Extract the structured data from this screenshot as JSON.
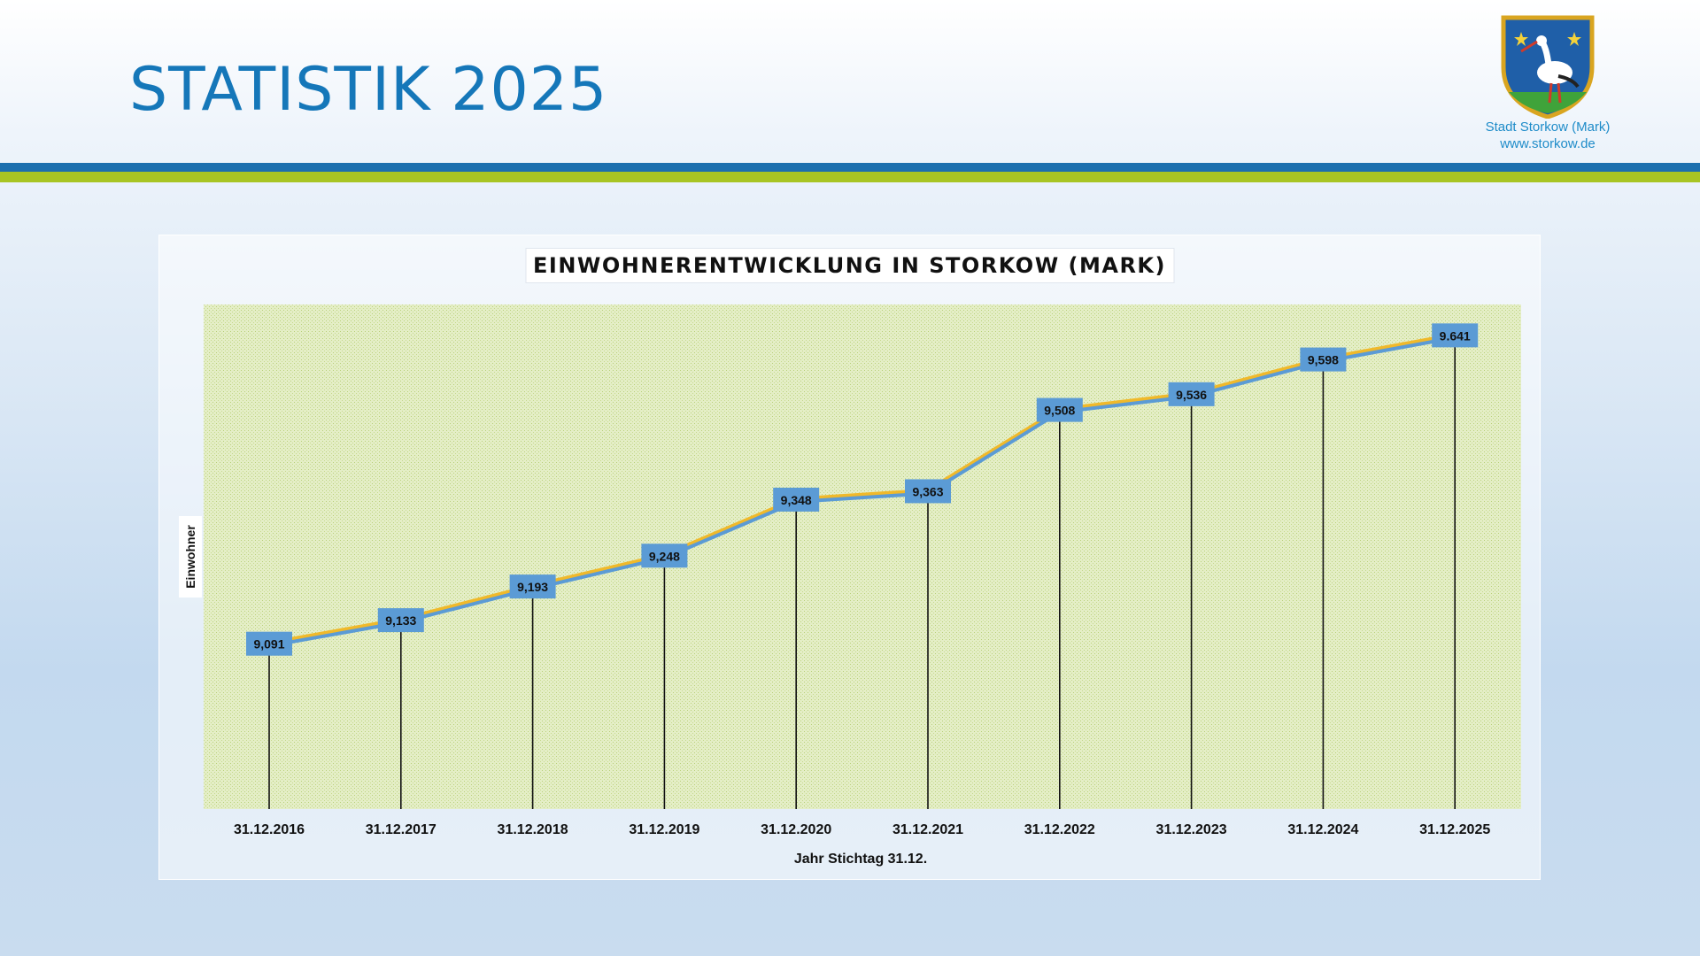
{
  "slide": {
    "title": "STATISTIK 2025",
    "logo_line1": "Stadt Storkow (Mark)",
    "logo_line2": "www.storkow.de"
  },
  "colors": {
    "title_blue": "#1577b9",
    "stripe_blue": "#1c6fae",
    "stripe_green": "#a8c523",
    "plot_background": "#e6f0c8",
    "line_yellow": "#f0b92a",
    "line_blue": "#5b9bd5",
    "label_box": "#5b9bd5"
  },
  "icons": {
    "logo": "coat-of-arms-stork-icon"
  },
  "chart_data": {
    "type": "line",
    "title": "EINWOHNERENTWICKLUNG IN STORKOW (MARK)",
    "xlabel": "Jahr Stichtag 31.12.",
    "ylabel": "Einwohner",
    "categories": [
      "31.12.2016",
      "31.12.2017",
      "31.12.2018",
      "31.12.2019",
      "31.12.2020",
      "31.12.2021",
      "31.12.2022",
      "31.12.2023",
      "31.12.2024",
      "31.12.2025"
    ],
    "values": [
      9091,
      9133,
      9193,
      9248,
      9348,
      9363,
      9508,
      9536,
      9598,
      9641
    ],
    "data_labels": [
      "9,091",
      "9,133",
      "9,193",
      "9,248",
      "9,348",
      "9,363",
      "9,508",
      "9,536",
      "9,598",
      "9.641"
    ],
    "ylim": [
      8800,
      9700
    ],
    "drop_lines": true,
    "grid": false,
    "legend": "none"
  }
}
